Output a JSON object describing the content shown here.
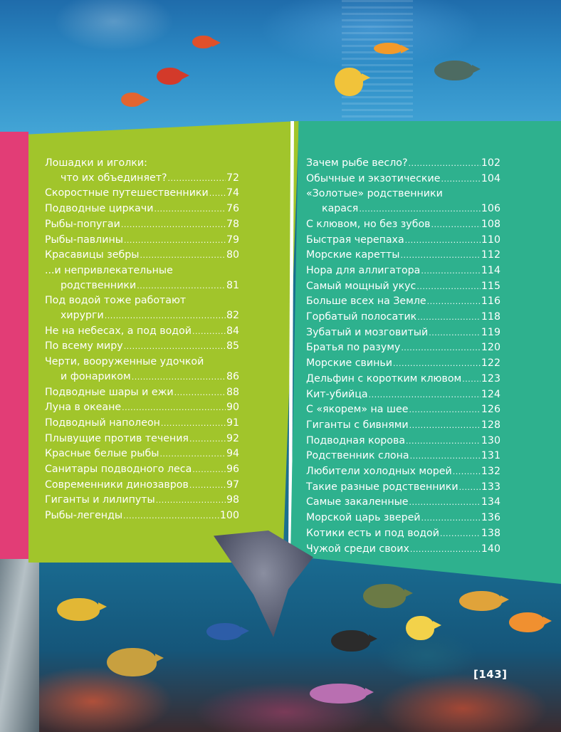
{
  "colors": {
    "left_panel": "#a1c52b",
    "right_panel": "#2eb18e",
    "side_strip": "#e23d76",
    "text": "#ffffff"
  },
  "toc_left": [
    {
      "lines": [
        "Лошадки и иголки:",
        "что их объединяет?"
      ],
      "page": "72"
    },
    {
      "lines": [
        "Скоростные путешественники"
      ],
      "page": "74"
    },
    {
      "lines": [
        "Подводные циркачи"
      ],
      "page": "76"
    },
    {
      "lines": [
        "Рыбы-попугаи"
      ],
      "page": "78"
    },
    {
      "lines": [
        "Рыбы-павлины"
      ],
      "page": "79"
    },
    {
      "lines": [
        "Красавицы зебры"
      ],
      "page": "80"
    },
    {
      "lines": [
        "...и непривлекательные",
        "родственники"
      ],
      "page": "81"
    },
    {
      "lines": [
        "Под водой тоже работают",
        "хирурги"
      ],
      "page": "82"
    },
    {
      "lines": [
        "Не на небесах, а под водой"
      ],
      "page": "84"
    },
    {
      "lines": [
        "По всему миру"
      ],
      "page": "85"
    },
    {
      "lines": [
        "Черти,  вооруженные удочкой",
        "и фонариком"
      ],
      "page": "86"
    },
    {
      "lines": [
        "Подводные  шары  и  ежи"
      ],
      "page": "88"
    },
    {
      "lines": [
        "Луна в океане"
      ],
      "page": "90"
    },
    {
      "lines": [
        "Подводный наполеон"
      ],
      "page": "91"
    },
    {
      "lines": [
        "Плывущие против  течения"
      ],
      "page": "92"
    },
    {
      "lines": [
        "Красные белые  рыбы"
      ],
      "page": "94"
    },
    {
      "lines": [
        "Санитары подводного леса"
      ],
      "page": "96"
    },
    {
      "lines": [
        "Современники динозавров"
      ],
      "page": "97"
    },
    {
      "lines": [
        "Гиганты и лилипуты"
      ],
      "page": "98"
    },
    {
      "lines": [
        "Рыбы-легенды"
      ],
      "page": "100"
    }
  ],
  "toc_right": [
    {
      "lines": [
        "Зачем рыбе весло?"
      ],
      "page": "102"
    },
    {
      "lines": [
        "Обычные и экзотические"
      ],
      "page": "104"
    },
    {
      "lines": [
        "«Золотые» родственники",
        "карася"
      ],
      "page": "106"
    },
    {
      "lines": [
        "С клювом, но без зубов"
      ],
      "page": "108"
    },
    {
      "lines": [
        "Быстрая черепаха"
      ],
      "page": "110"
    },
    {
      "lines": [
        "Морские каретты"
      ],
      "page": "112"
    },
    {
      "lines": [
        "Нора для аллигатора"
      ],
      "page": "114"
    },
    {
      "lines": [
        "Самый мощный укус"
      ],
      "page": "115"
    },
    {
      "lines": [
        "Больше всех на Земле"
      ],
      "page": "116"
    },
    {
      "lines": [
        "Горбатый полосатик"
      ],
      "page": "118"
    },
    {
      "lines": [
        "Зубатый и мозговитый"
      ],
      "page": "119"
    },
    {
      "lines": [
        "Братья по разуму"
      ],
      "page": "120"
    },
    {
      "lines": [
        "Морские свиньи"
      ],
      "page": "122"
    },
    {
      "lines": [
        "Дельфин с коротким клювом"
      ],
      "page": "123"
    },
    {
      "lines": [
        "Кит-убийца"
      ],
      "page": "124"
    },
    {
      "lines": [
        "С «якорем» на шее"
      ],
      "page": "126"
    },
    {
      "lines": [
        "Гиганты с бивнями"
      ],
      "page": "128"
    },
    {
      "lines": [
        "Подводная корова"
      ],
      "page": "130"
    },
    {
      "lines": [
        "Родственник слона"
      ],
      "page": "131"
    },
    {
      "lines": [
        "Любители холодных морей"
      ],
      "page": "132"
    },
    {
      "lines": [
        "Такие разные родственники"
      ],
      "page": "133"
    },
    {
      "lines": [
        "Самые закаленные"
      ],
      "page": "134"
    },
    {
      "lines": [
        "Морской царь зверей"
      ],
      "page": "136"
    },
    {
      "lines": [
        "Котики есть и под водой"
      ],
      "page": "138"
    },
    {
      "lines": [
        "Чужой среди своих"
      ],
      "page": "140"
    }
  ],
  "page_number": "[143]"
}
